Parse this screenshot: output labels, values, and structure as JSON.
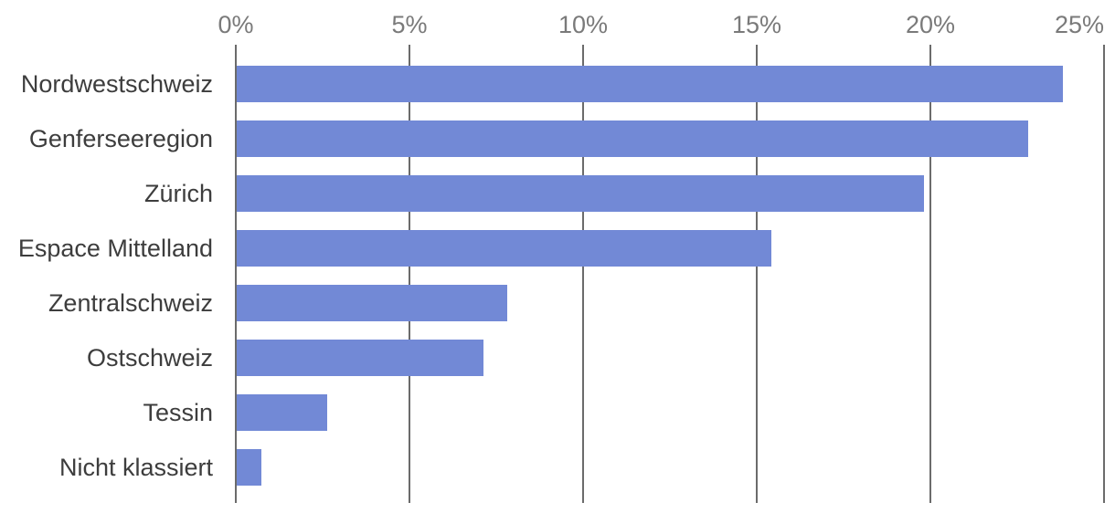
{
  "chart_data": {
    "type": "bar",
    "orientation": "horizontal",
    "title": "",
    "xlabel": "",
    "ylabel": "",
    "categories": [
      "Nordwestschweiz",
      "Genferseeregion",
      "Zürich",
      "Espace Mittelland",
      "Zentralschweiz",
      "Ostschweiz",
      "Tessin",
      "Nicht klassiert"
    ],
    "values": [
      23.8,
      22.8,
      19.8,
      15.4,
      7.8,
      7.1,
      2.6,
      0.7
    ],
    "unit": "%",
    "xlim": [
      0,
      25
    ],
    "x_ticks": [
      0,
      5,
      10,
      15,
      20,
      25
    ],
    "x_tick_labels": [
      "0%",
      "5%",
      "10%",
      "15%",
      "20%",
      "25%"
    ],
    "grid": true,
    "gridlines_behind_bars": true,
    "legend": false,
    "tick_label_position": "top",
    "colors": {
      "bar": "#7289d6",
      "gridline": "#6b6b6b",
      "tick_label": "#7a7a7a",
      "category_label": "#3d3d3d",
      "background": "#ffffff"
    }
  }
}
